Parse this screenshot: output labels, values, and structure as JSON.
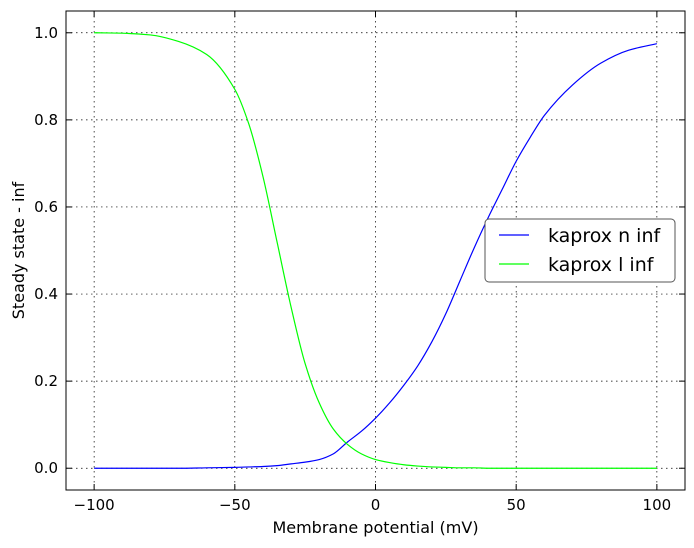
{
  "chart_data": {
    "type": "line",
    "title": "",
    "xlabel": "Membrane potential (mV)",
    "ylabel": "Steady state - inf",
    "xlim": [
      -110,
      110
    ],
    "ylim": [
      -0.05,
      1.05
    ],
    "xticks": [
      -100,
      -50,
      0,
      50,
      100
    ],
    "xtick_labels": [
      "−100",
      "−50",
      "0",
      "50",
      "100"
    ],
    "yticks": [
      0.0,
      0.2,
      0.4,
      0.6,
      0.8,
      1.0
    ],
    "ytick_labels": [
      "0.0",
      "0.2",
      "0.4",
      "0.6",
      "0.8",
      "1.0"
    ],
    "grid": true,
    "legend_position": "center-right",
    "x": [
      -100,
      -90,
      -80,
      -70,
      -60,
      -50,
      -45,
      -40,
      -35,
      -30,
      -25,
      -20,
      -15,
      -10,
      -5,
      0,
      5,
      10,
      15,
      20,
      25,
      30,
      35,
      40,
      45,
      50,
      55,
      60,
      70,
      80,
      90,
      100
    ],
    "series": [
      {
        "name": "kaprox n inf",
        "color": "#0000ff",
        "values": [
          0.0,
          0.0,
          0.0,
          0.0,
          0.001,
          0.002,
          0.003,
          0.004,
          0.006,
          0.01,
          0.014,
          0.02,
          0.033,
          0.06,
          0.085,
          0.115,
          0.15,
          0.19,
          0.235,
          0.29,
          0.355,
          0.43,
          0.505,
          0.575,
          0.64,
          0.705,
          0.76,
          0.81,
          0.88,
          0.93,
          0.96,
          0.975
        ]
      },
      {
        "name": "kaprox l inf",
        "color": "#00ff00",
        "values": [
          1.0,
          0.999,
          0.995,
          0.98,
          0.95,
          0.87,
          0.79,
          0.67,
          0.52,
          0.37,
          0.24,
          0.15,
          0.09,
          0.055,
          0.033,
          0.02,
          0.013,
          0.008,
          0.005,
          0.003,
          0.002,
          0.001,
          0.001,
          0.0,
          0.0,
          0.0,
          0.0,
          0.0,
          0.0,
          0.0,
          0.0,
          0.0
        ]
      }
    ]
  }
}
